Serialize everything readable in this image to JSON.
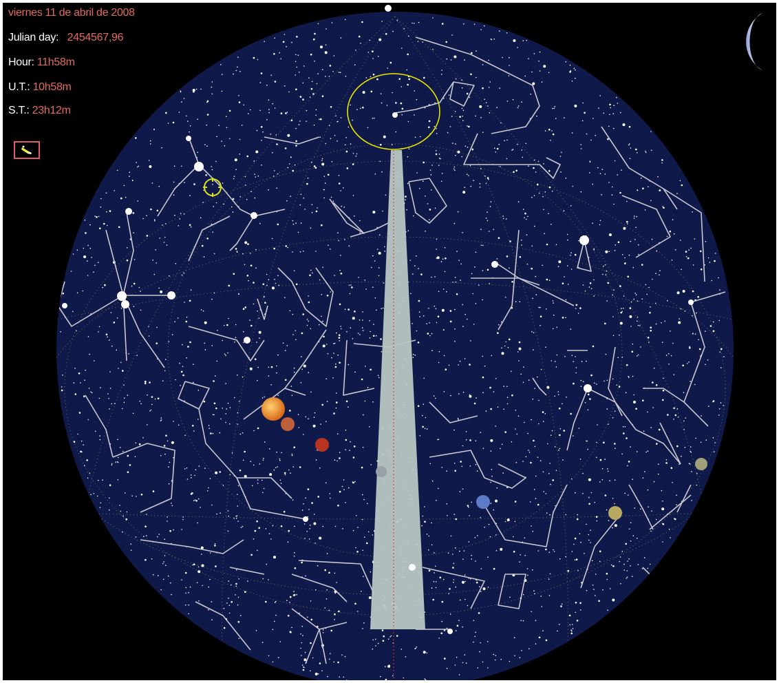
{
  "info": {
    "date": "viernes 11 de abril de 2008",
    "julian_label": "Julian day:",
    "julian_value": "2454567,96",
    "hour_label": "Hour:",
    "hour_value": "11h58m",
    "ut_label": "U.T.:",
    "ut_value": "10h58m",
    "st_label": "S.T.:",
    "st_value": "23h12m"
  },
  "toolbar": {
    "tool_icon": "telescope-icon"
  },
  "sky": {
    "background": "#101a4a",
    "constellation_line_color": "#c8c8d0",
    "zenith_marker_color": "#e6e600",
    "milky_way_color": "#b8c6c2",
    "meridian_color": "#e03030"
  },
  "planets": [
    {
      "name": "jupiter",
      "color": "#e88a2c"
    },
    {
      "name": "mars-like",
      "color": "#c0603a"
    },
    {
      "name": "mars",
      "color": "#b83420"
    },
    {
      "name": "uranus",
      "color": "#5c7cc8"
    },
    {
      "name": "saturn",
      "color": "#b8a860"
    },
    {
      "name": "venus-like",
      "color": "#a0a07a"
    }
  ],
  "moon": {
    "phase": "crescent",
    "color": "#c8d4f0"
  }
}
